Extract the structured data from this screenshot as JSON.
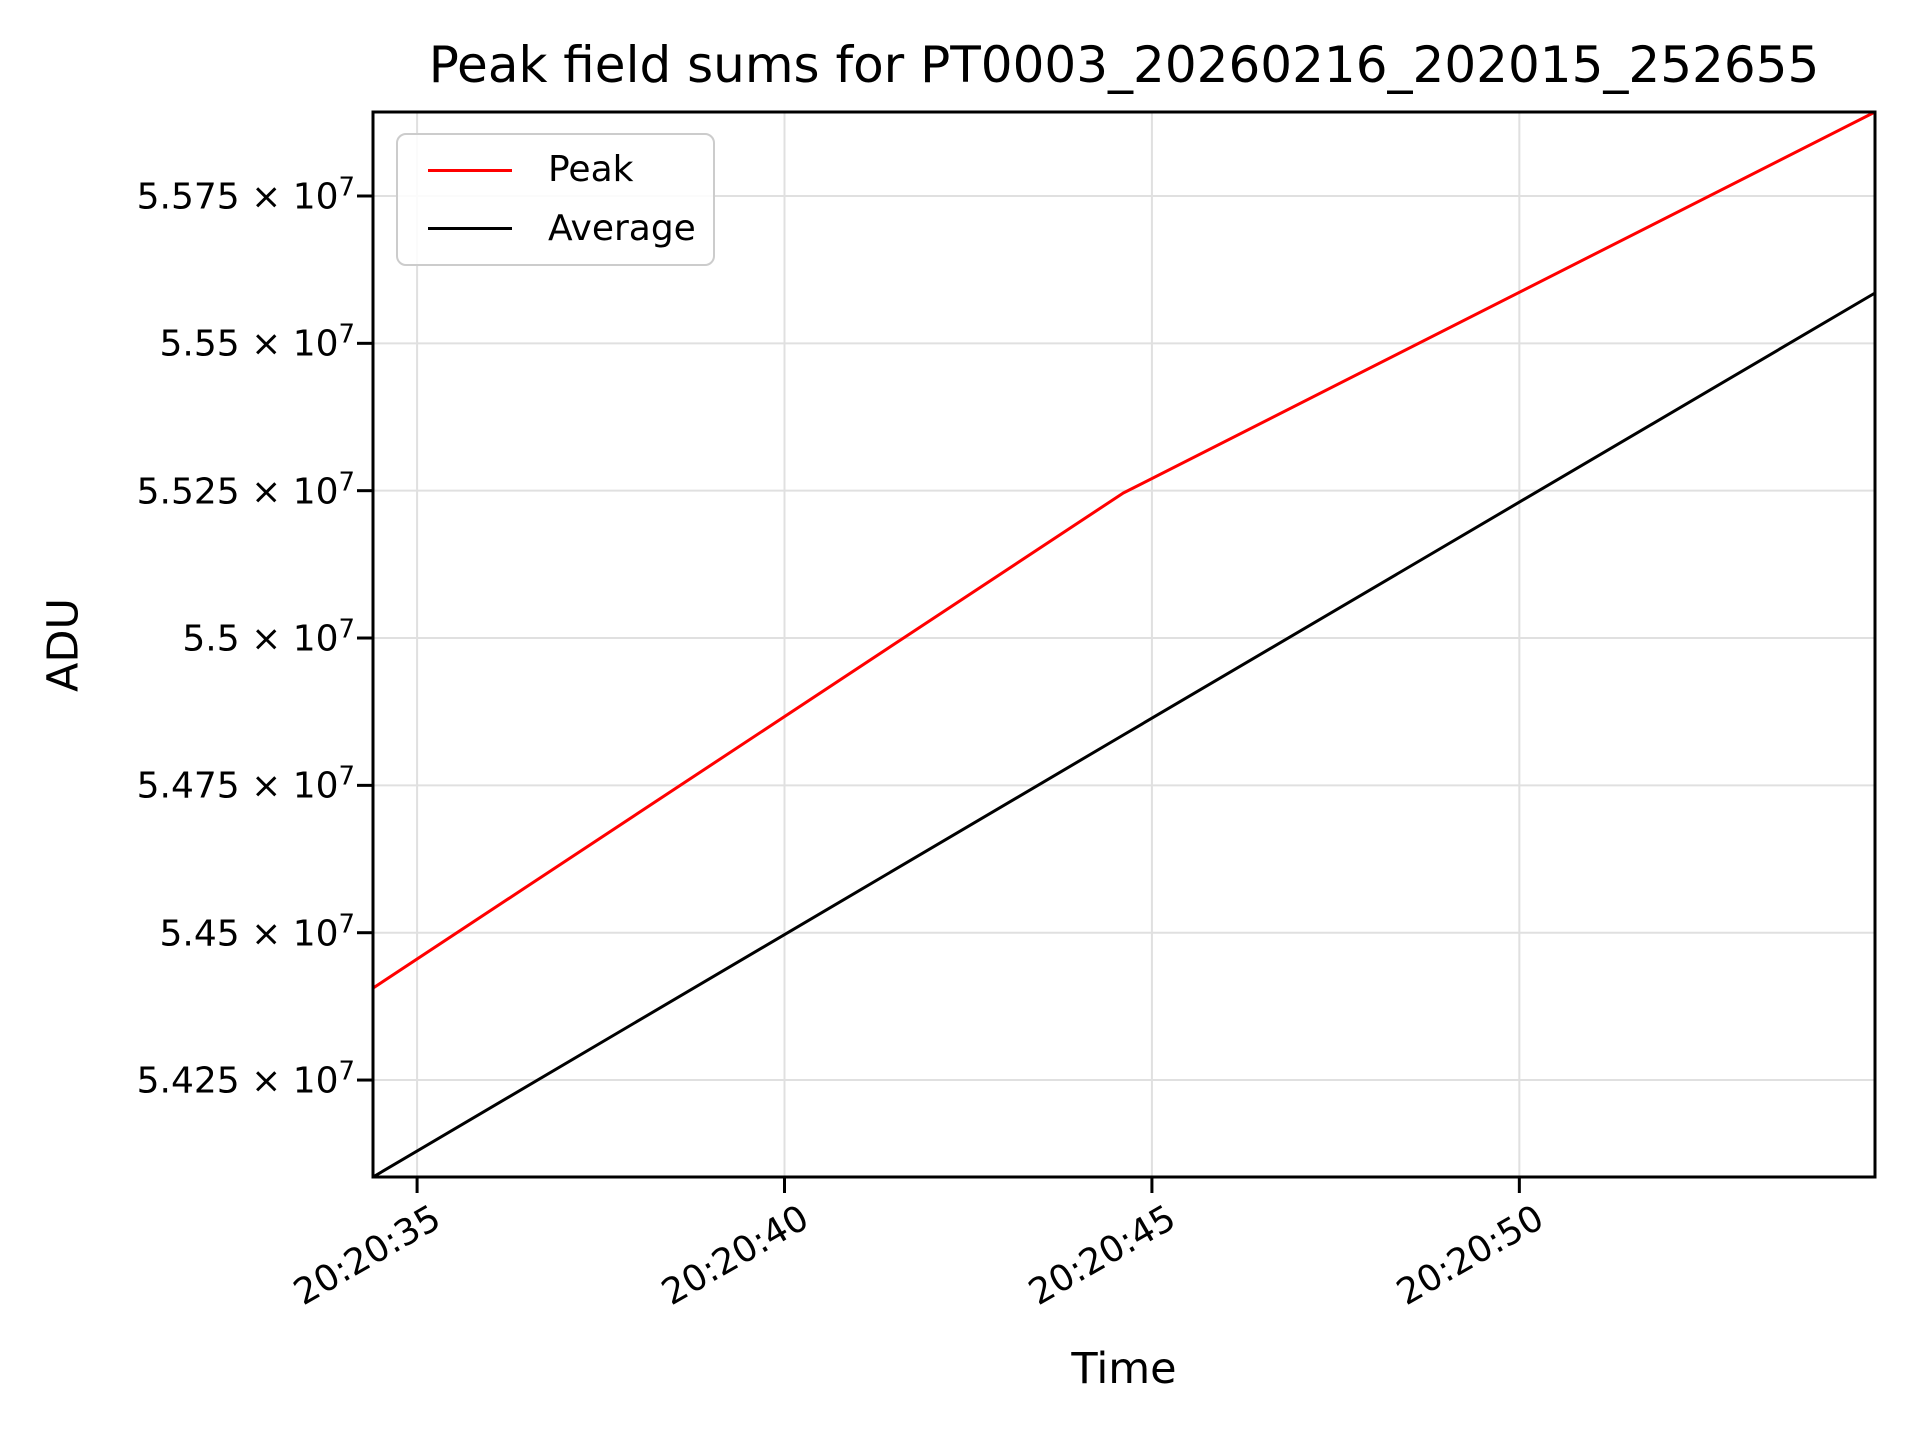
{
  "figure": {
    "title": "Peak field sums for PT0003_20260216_202015_252655",
    "xlabel": "Time",
    "ylabel": "ADU"
  },
  "colors": {
    "background": "#ffffff",
    "grid": "#e0e0e0",
    "spine": "#000000",
    "text": "#000000",
    "legend_border": "#cccccc",
    "peak_line": "#ff0000",
    "average_line": "#000000"
  },
  "legend": {
    "position": "upper left",
    "items": [
      {
        "label": "Peak",
        "color": "#ff0000"
      },
      {
        "label": "Average",
        "color": "#000000"
      }
    ]
  },
  "chart_data": {
    "type": "line",
    "title": "Peak field sums for PT0003_20260216_202015_252655",
    "xlabel": "Time",
    "ylabel": "ADU",
    "grid": true,
    "yscale": "log",
    "legend_position": "upper left",
    "x_axis": {
      "unit": "seconds after 20:20:00",
      "xlim": [
        34.4,
        54.84
      ],
      "ticks": [
        {
          "label": "20:20:35",
          "seconds": 35
        },
        {
          "label": "20:20:40",
          "seconds": 40
        },
        {
          "label": "20:20:45",
          "seconds": 45
        },
        {
          "label": "20:20:50",
          "seconds": 50
        }
      ]
    },
    "y_axis": {
      "unit": "ADU",
      "ylim": [
        54085500,
        55892500
      ],
      "ticks": [
        {
          "label": "5.575 × 10^7",
          "mantissa": "5.575 × 10",
          "exponent": "7",
          "value": 55750000
        },
        {
          "label": "5.55 × 10^7",
          "mantissa": "5.55 × 10",
          "exponent": "7",
          "value": 55500000
        },
        {
          "label": "5.525 × 10^7",
          "mantissa": "5.525 × 10",
          "exponent": "7",
          "value": 55250000
        },
        {
          "label": "5.5 × 10^7",
          "mantissa": "5.5 × 10",
          "exponent": "7",
          "value": 55000000
        },
        {
          "label": "5.475 × 10^7",
          "mantissa": "5.475 × 10",
          "exponent": "7",
          "value": 54750000
        },
        {
          "label": "5.45 × 10^7",
          "mantissa": "5.45 × 10",
          "exponent": "7",
          "value": 54500000
        },
        {
          "label": "5.425 × 10^7",
          "mantissa": "5.425 × 10",
          "exponent": "7",
          "value": 54250000
        }
      ]
    },
    "series": [
      {
        "name": "Peak",
        "color": "#ff0000",
        "x_seconds": [
          34.4,
          44.61,
          54.84
        ],
        "x_labels": [
          "20:20:34.4",
          "20:20:44.6",
          "20:20:54.8"
        ],
        "y": [
          54406000,
          55246000,
          55892500
        ]
      },
      {
        "name": "Average",
        "color": "#000000",
        "x_seconds": [
          34.4,
          44.61,
          54.84
        ],
        "x_labels": [
          "20:20:34.4",
          "20:20:44.6",
          "20:20:54.8"
        ],
        "y": [
          54085500,
          54835450,
          55585400
        ]
      }
    ]
  }
}
